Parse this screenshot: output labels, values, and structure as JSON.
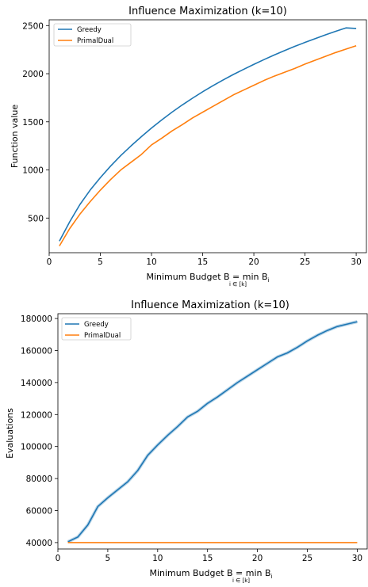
{
  "chart_data": [
    {
      "type": "line",
      "title": "Influence Maximization (k=10)",
      "xlabel": "Minimum Budget B = min B",
      "xlabel_subscript": "i ∈ [k]",
      "xlabel_var_subscript": "i",
      "ylabel": "Function value",
      "xlim": [
        0,
        31
      ],
      "ylim": [
        140,
        2560
      ],
      "xticks": [
        0,
        5,
        10,
        15,
        20,
        25,
        30
      ],
      "yticks": [
        500,
        1000,
        1500,
        2000,
        2500
      ],
      "xtick_labels": [
        "0",
        "5",
        "10",
        "15",
        "20",
        "25",
        "30"
      ],
      "ytick_labels": [
        "500",
        "1000",
        "1500",
        "2000",
        "2500"
      ],
      "legend_position": "upper left",
      "grid": false,
      "series": [
        {
          "name": "Greedy",
          "color": "#1f77b4",
          "x": [
            1,
            2,
            3,
            4,
            5,
            6,
            7,
            8,
            9,
            10,
            11,
            12,
            13,
            14,
            15,
            16,
            17,
            18,
            19,
            20,
            21,
            22,
            23,
            24,
            25,
            26,
            27,
            28,
            29,
            30
          ],
          "y": [
            260,
            460,
            640,
            790,
            920,
            1040,
            1150,
            1250,
            1345,
            1435,
            1520,
            1600,
            1675,
            1745,
            1812,
            1875,
            1935,
            1992,
            2045,
            2097,
            2147,
            2195,
            2240,
            2284,
            2325,
            2365,
            2404,
            2441,
            2476,
            2470
          ]
        },
        {
          "name": "PrimalDual",
          "color": "#ff7f0e",
          "x": [
            1,
            2,
            3,
            4,
            5,
            6,
            7,
            8,
            9,
            10,
            11,
            12,
            13,
            14,
            15,
            16,
            17,
            18,
            19,
            20,
            21,
            22,
            23,
            24,
            25,
            26,
            27,
            28,
            29,
            30
          ],
          "y": [
            210,
            390,
            540,
            670,
            790,
            900,
            1000,
            1080,
            1160,
            1260,
            1330,
            1405,
            1470,
            1540,
            1600,
            1660,
            1720,
            1780,
            1830,
            1880,
            1930,
            1975,
            2015,
            2055,
            2100,
            2140,
            2180,
            2220,
            2255,
            2290
          ]
        }
      ]
    },
    {
      "type": "line",
      "title": "Influence Maximization (k=10)",
      "xlabel": "Minimum Budget B = min B",
      "xlabel_subscript": "i ∈ [k]",
      "xlabel_var_subscript": "i",
      "ylabel": "Evaluations",
      "xlim": [
        0,
        31
      ],
      "ylim": [
        36000,
        183000
      ],
      "xticks": [
        0,
        5,
        10,
        15,
        20,
        25,
        30
      ],
      "yticks": [
        40000,
        60000,
        80000,
        100000,
        120000,
        140000,
        160000,
        180000
      ],
      "xtick_labels": [
        "0",
        "5",
        "10",
        "15",
        "20",
        "25",
        "30"
      ],
      "ytick_labels": [
        "40000",
        "60000",
        "80000",
        "100000",
        "120000",
        "140000",
        "160000",
        "180000"
      ],
      "legend_position": "upper left",
      "grid": false,
      "series": [
        {
          "name": "Greedy",
          "color": "#1f77b4",
          "x": [
            1,
            2,
            3,
            4,
            5,
            6,
            7,
            8,
            9,
            10,
            11,
            12,
            13,
            14,
            15,
            16,
            17,
            18,
            19,
            20,
            21,
            22,
            23,
            24,
            25,
            26,
            27,
            28,
            29,
            30
          ],
          "y": [
            40500,
            43500,
            51000,
            62500,
            68000,
            73000,
            78000,
            85000,
            94500,
            101000,
            107000,
            112500,
            118500,
            122000,
            127000,
            131000,
            135500,
            140000,
            144000,
            148000,
            152000,
            156000,
            158500,
            162000,
            166000,
            169500,
            172500,
            175000,
            176500,
            178000
          ]
        },
        {
          "name": "PrimalDual",
          "color": "#ff7f0e",
          "x": [
            1,
            30
          ],
          "y": [
            40000,
            40000
          ]
        }
      ]
    }
  ]
}
